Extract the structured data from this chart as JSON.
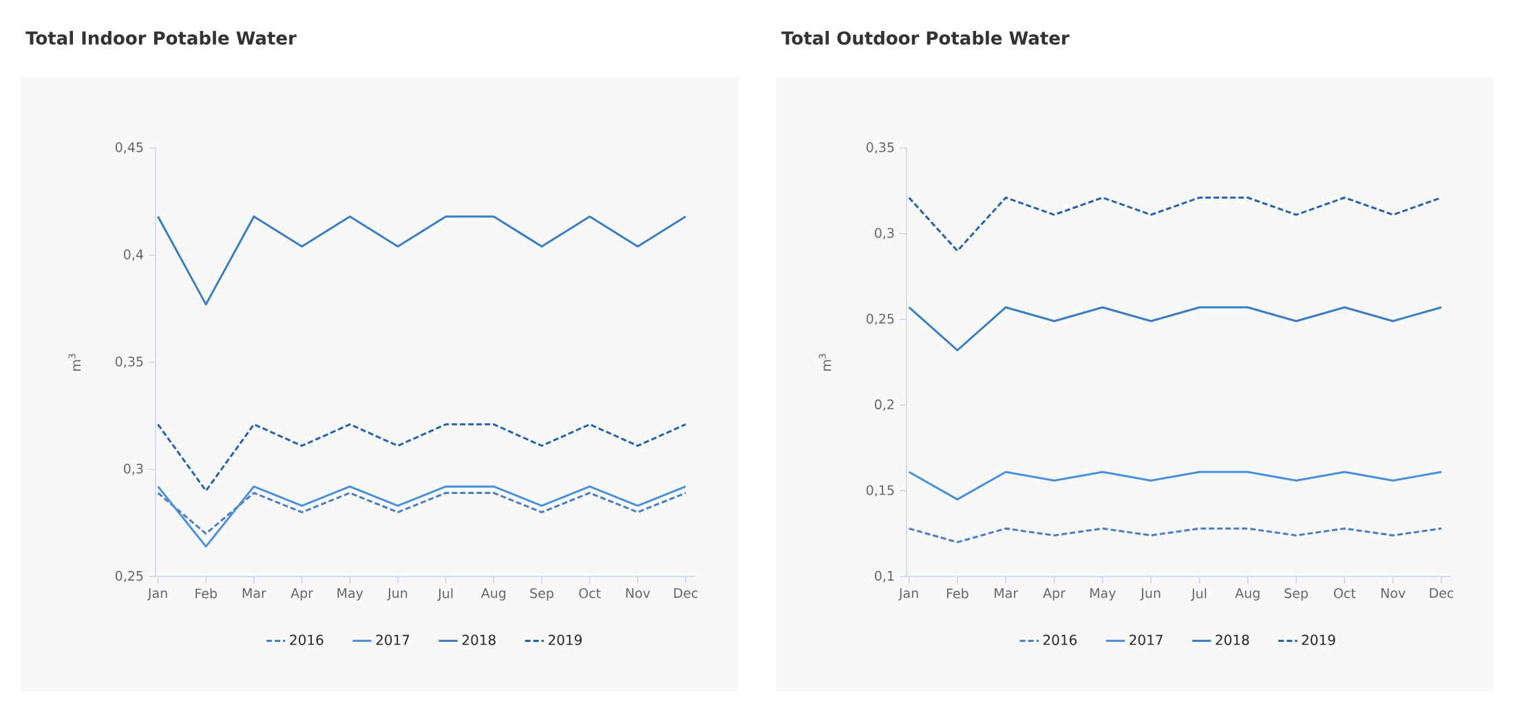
{
  "chart_data": [
    {
      "type": "line",
      "title": "Total Indoor Potable Water",
      "ylabel": "m$^{3}$",
      "categories": [
        "Jan",
        "Feb",
        "Mar",
        "Apr",
        "May",
        "Jun",
        "Jul",
        "Aug",
        "Sep",
        "Oct",
        "Nov",
        "Dec"
      ],
      "series": [
        {
          "name": "2016",
          "color": "#4a7ec0",
          "line_style": "dashed",
          "values": [
            0.289,
            0.27,
            0.289,
            0.28,
            0.289,
            0.28,
            0.289,
            0.289,
            0.28,
            0.289,
            0.28,
            0.289
          ]
        },
        {
          "name": "2017",
          "color": "#4a90d9",
          "line_style": "solid",
          "values": [
            0.292,
            0.264,
            0.292,
            0.283,
            0.292,
            0.283,
            0.292,
            0.292,
            0.283,
            0.292,
            0.283,
            0.292
          ]
        },
        {
          "name": "2018",
          "color": "#3a7dc0",
          "line_style": "solid",
          "values": [
            0.418,
            0.377,
            0.418,
            0.404,
            0.418,
            0.404,
            0.418,
            0.418,
            0.404,
            0.418,
            0.404,
            0.418
          ]
        },
        {
          "name": "2019",
          "color": "#2563a6",
          "line_style": "dashed",
          "values": [
            0.321,
            0.29,
            0.321,
            0.311,
            0.321,
            0.311,
            0.321,
            0.321,
            0.311,
            0.321,
            0.311,
            0.321
          ]
        }
      ],
      "ylim": [
        0.25,
        0.45
      ],
      "yticks": [
        {
          "value": 0.25,
          "label": "0,25"
        },
        {
          "value": 0.3,
          "label": "0,3"
        },
        {
          "value": 0.35,
          "label": "0,35"
        },
        {
          "value": 0.4,
          "label": "0,4"
        },
        {
          "value": 0.45,
          "label": "0,45"
        }
      ],
      "legend": "bottom"
    },
    {
      "type": "line",
      "title": "Total Outdoor Potable Water",
      "ylabel": "m$^{3}$",
      "categories": [
        "Jan",
        "Feb",
        "Mar",
        "Apr",
        "May",
        "Jun",
        "Jul",
        "Aug",
        "Sep",
        "Oct",
        "Nov",
        "Dec"
      ],
      "series": [
        {
          "name": "2016",
          "color": "#4a7ec0",
          "line_style": "dashed",
          "values": [
            0.128,
            0.12,
            0.128,
            0.124,
            0.128,
            0.124,
            0.128,
            0.128,
            0.124,
            0.128,
            0.124,
            0.128
          ]
        },
        {
          "name": "2017",
          "color": "#4a90d9",
          "line_style": "solid",
          "values": [
            0.161,
            0.145,
            0.161,
            0.156,
            0.161,
            0.156,
            0.161,
            0.161,
            0.156,
            0.161,
            0.156,
            0.161
          ]
        },
        {
          "name": "2018",
          "color": "#3a7dc0",
          "line_style": "solid",
          "values": [
            0.257,
            0.232,
            0.257,
            0.249,
            0.257,
            0.249,
            0.257,
            0.257,
            0.249,
            0.257,
            0.249,
            0.257
          ]
        },
        {
          "name": "2019",
          "color": "#2563a6",
          "line_style": "dashed",
          "values": [
            0.321,
            0.29,
            0.321,
            0.311,
            0.321,
            0.311,
            0.321,
            0.321,
            0.311,
            0.321,
            0.311,
            0.321
          ]
        }
      ],
      "ylim": [
        0.1,
        0.35
      ],
      "yticks": [
        {
          "value": 0.1,
          "label": "0,1"
        },
        {
          "value": 0.15,
          "label": "0,15"
        },
        {
          "value": 0.2,
          "label": "0,2"
        },
        {
          "value": 0.25,
          "label": "0,25"
        },
        {
          "value": 0.3,
          "label": "0,3"
        },
        {
          "value": 0.35,
          "label": "0,35"
        }
      ],
      "legend": "bottom"
    }
  ]
}
